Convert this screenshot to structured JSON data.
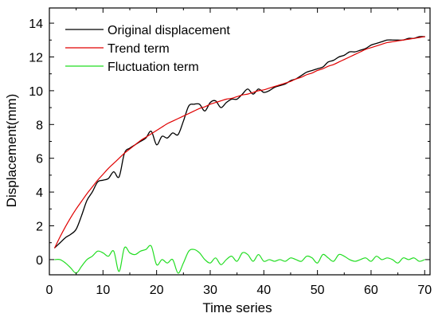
{
  "chart_data": {
    "type": "line",
    "xlabel": "Time series",
    "ylabel": "Displacement(mm)",
    "xlim": [
      0,
      71
    ],
    "ylim": [
      -0.9,
      14.9
    ],
    "x_ticks": [
      0,
      10,
      20,
      30,
      40,
      50,
      60,
      70
    ],
    "y_ticks": [
      0,
      2,
      4,
      6,
      8,
      10,
      12,
      14
    ],
    "grid": false,
    "legend_position": "top-left",
    "series": [
      {
        "name": "Original displacement",
        "color": "#000000",
        "points": [
          [
            1,
            0.7
          ],
          [
            2,
            1.0
          ],
          [
            3,
            1.3
          ],
          [
            4,
            1.5
          ],
          [
            5,
            1.8
          ],
          [
            6,
            2.6
          ],
          [
            7,
            3.5
          ],
          [
            8,
            4.0
          ],
          [
            9,
            4.6
          ],
          [
            10,
            4.7
          ],
          [
            11,
            4.8
          ],
          [
            12,
            5.2
          ],
          [
            13,
            4.9
          ],
          [
            14,
            6.3
          ],
          [
            15,
            6.6
          ],
          [
            16,
            6.8
          ],
          [
            17,
            7.0
          ],
          [
            18,
            7.2
          ],
          [
            19,
            7.6
          ],
          [
            20,
            6.8
          ],
          [
            21,
            7.3
          ],
          [
            22,
            7.2
          ],
          [
            23,
            7.5
          ],
          [
            24,
            7.4
          ],
          [
            25,
            8.2
          ],
          [
            26,
            9.1
          ],
          [
            27,
            9.2
          ],
          [
            28,
            9.2
          ],
          [
            29,
            8.8
          ],
          [
            30,
            9.3
          ],
          [
            31,
            9.4
          ],
          [
            32,
            9.0
          ],
          [
            33,
            9.3
          ],
          [
            34,
            9.5
          ],
          [
            35,
            9.5
          ],
          [
            36,
            9.8
          ],
          [
            37,
            10.1
          ],
          [
            38,
            9.8
          ],
          [
            39,
            10.1
          ],
          [
            40,
            9.9
          ],
          [
            41,
            10.0
          ],
          [
            42,
            10.2
          ],
          [
            43,
            10.3
          ],
          [
            44,
            10.4
          ],
          [
            45,
            10.6
          ],
          [
            46,
            10.7
          ],
          [
            47,
            10.9
          ],
          [
            48,
            11.1
          ],
          [
            49,
            11.2
          ],
          [
            50,
            11.3
          ],
          [
            51,
            11.4
          ],
          [
            52,
            11.7
          ],
          [
            53,
            11.8
          ],
          [
            54,
            12.0
          ],
          [
            55,
            12.1
          ],
          [
            56,
            12.3
          ],
          [
            57,
            12.3
          ],
          [
            58,
            12.4
          ],
          [
            59,
            12.5
          ],
          [
            60,
            12.7
          ],
          [
            61,
            12.8
          ],
          [
            62,
            12.9
          ],
          [
            63,
            13.0
          ],
          [
            64,
            13.0
          ],
          [
            65,
            13.0
          ],
          [
            66,
            13.0
          ],
          [
            67,
            13.1
          ],
          [
            68,
            13.1
          ],
          [
            69,
            13.2
          ],
          [
            70,
            13.2
          ]
        ]
      },
      {
        "name": "Trend term",
        "color": "#e00000",
        "points": [
          [
            1,
            0.7
          ],
          [
            2,
            1.35
          ],
          [
            3,
            1.95
          ],
          [
            4,
            2.5
          ],
          [
            5,
            3.0
          ],
          [
            6,
            3.45
          ],
          [
            7,
            3.9
          ],
          [
            8,
            4.3
          ],
          [
            9,
            4.7
          ],
          [
            10,
            5.05
          ],
          [
            11,
            5.4
          ],
          [
            12,
            5.7
          ],
          [
            13,
            6.0
          ],
          [
            14,
            6.3
          ],
          [
            15,
            6.55
          ],
          [
            16,
            6.8
          ],
          [
            17,
            7.05
          ],
          [
            18,
            7.25
          ],
          [
            19,
            7.45
          ],
          [
            20,
            7.65
          ],
          [
            21,
            7.85
          ],
          [
            22,
            8.05
          ],
          [
            23,
            8.2
          ],
          [
            24,
            8.35
          ],
          [
            25,
            8.5
          ],
          [
            26,
            8.65
          ],
          [
            27,
            8.8
          ],
          [
            28,
            8.95
          ],
          [
            29,
            9.05
          ],
          [
            30,
            9.2
          ],
          [
            31,
            9.3
          ],
          [
            32,
            9.4
          ],
          [
            33,
            9.5
          ],
          [
            34,
            9.55
          ],
          [
            35,
            9.65
          ],
          [
            36,
            9.75
          ],
          [
            37,
            9.8
          ],
          [
            38,
            9.9
          ],
          [
            39,
            10.0
          ],
          [
            40,
            10.05
          ],
          [
            41,
            10.15
          ],
          [
            42,
            10.25
          ],
          [
            43,
            10.35
          ],
          [
            44,
            10.45
          ],
          [
            45,
            10.55
          ],
          [
            46,
            10.7
          ],
          [
            47,
            10.8
          ],
          [
            48,
            10.95
          ],
          [
            49,
            11.05
          ],
          [
            50,
            11.2
          ],
          [
            51,
            11.3
          ],
          [
            52,
            11.45
          ],
          [
            53,
            11.55
          ],
          [
            54,
            11.7
          ],
          [
            55,
            11.85
          ],
          [
            56,
            12.0
          ],
          [
            57,
            12.15
          ],
          [
            58,
            12.3
          ],
          [
            59,
            12.45
          ],
          [
            60,
            12.55
          ],
          [
            61,
            12.65
          ],
          [
            62,
            12.75
          ],
          [
            63,
            12.85
          ],
          [
            64,
            12.9
          ],
          [
            65,
            12.95
          ],
          [
            66,
            13.0
          ],
          [
            67,
            13.05
          ],
          [
            68,
            13.1
          ],
          [
            69,
            13.15
          ],
          [
            70,
            13.2
          ]
        ]
      },
      {
        "name": "Fluctuation term",
        "color": "#22dd22",
        "points": [
          [
            1,
            0.0
          ],
          [
            2,
            0.0
          ],
          [
            3,
            -0.2
          ],
          [
            4,
            -0.5
          ],
          [
            5,
            -0.8
          ],
          [
            6,
            -0.4
          ],
          [
            7,
            0.0
          ],
          [
            8,
            0.2
          ],
          [
            9,
            0.5
          ],
          [
            10,
            0.4
          ],
          [
            11,
            0.2
          ],
          [
            12,
            0.5
          ],
          [
            13,
            -0.7
          ],
          [
            14,
            0.7
          ],
          [
            15,
            0.4
          ],
          [
            16,
            0.3
          ],
          [
            17,
            0.5
          ],
          [
            18,
            0.6
          ],
          [
            19,
            0.8
          ],
          [
            20,
            -0.3
          ],
          [
            21,
            0.0
          ],
          [
            22,
            -0.2
          ],
          [
            23,
            0.0
          ],
          [
            24,
            -0.8
          ],
          [
            25,
            -0.2
          ],
          [
            26,
            0.5
          ],
          [
            27,
            0.6
          ],
          [
            28,
            0.4
          ],
          [
            29,
            0.0
          ],
          [
            30,
            -0.2
          ],
          [
            31,
            0.1
          ],
          [
            32,
            -0.3
          ],
          [
            33,
            0.0
          ],
          [
            34,
            0.2
          ],
          [
            35,
            -0.1
          ],
          [
            36,
            0.4
          ],
          [
            37,
            0.3
          ],
          [
            38,
            -0.1
          ],
          [
            39,
            0.3
          ],
          [
            40,
            -0.1
          ],
          [
            41,
            0.0
          ],
          [
            42,
            -0.1
          ],
          [
            43,
            0.0
          ],
          [
            44,
            -0.1
          ],
          [
            45,
            0.1
          ],
          [
            46,
            0.0
          ],
          [
            47,
            -0.1
          ],
          [
            48,
            0.2
          ],
          [
            49,
            0.1
          ],
          [
            50,
            -0.2
          ],
          [
            51,
            0.3
          ],
          [
            52,
            0.1
          ],
          [
            53,
            -0.1
          ],
          [
            54,
            0.3
          ],
          [
            55,
            0.2
          ],
          [
            56,
            0.0
          ],
          [
            57,
            -0.1
          ],
          [
            58,
            0.0
          ],
          [
            59,
            0.1
          ],
          [
            60,
            -0.1
          ],
          [
            61,
            0.2
          ],
          [
            62,
            0.0
          ],
          [
            63,
            0.1
          ],
          [
            64,
            0.0
          ],
          [
            65,
            -0.2
          ],
          [
            66,
            0.1
          ],
          [
            67,
            0.0
          ],
          [
            68,
            0.1
          ],
          [
            69,
            -0.1
          ],
          [
            70,
            0.0
          ]
        ]
      }
    ]
  }
}
